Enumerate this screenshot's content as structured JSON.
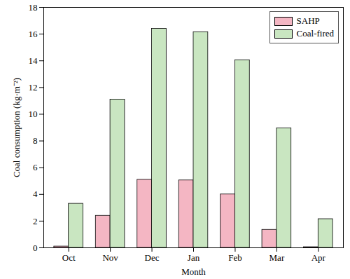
{
  "chart_data": {
    "type": "bar",
    "x_label": "Month",
    "y_label": "Coal consumption (kg·m⁻²)",
    "categories": [
      "Oct",
      "Nov",
      "Dec",
      "Jan",
      "Feb",
      "Mar",
      "Apr"
    ],
    "series": [
      {
        "name": "SAHP",
        "color": "#f4b6c3",
        "values": [
          0.1,
          2.4,
          5.1,
          5.05,
          4.0,
          1.35,
          0.05
        ]
      },
      {
        "name": "Coal-fired",
        "color": "#c9e6c1",
        "values": [
          3.3,
          11.1,
          16.4,
          16.15,
          14.05,
          8.95,
          2.15
        ]
      }
    ],
    "ylim": [
      0,
      18
    ],
    "yticks": [
      0,
      2,
      4,
      6,
      8,
      10,
      12,
      14,
      16,
      18
    ],
    "grid": false,
    "legend": "top-right"
  }
}
